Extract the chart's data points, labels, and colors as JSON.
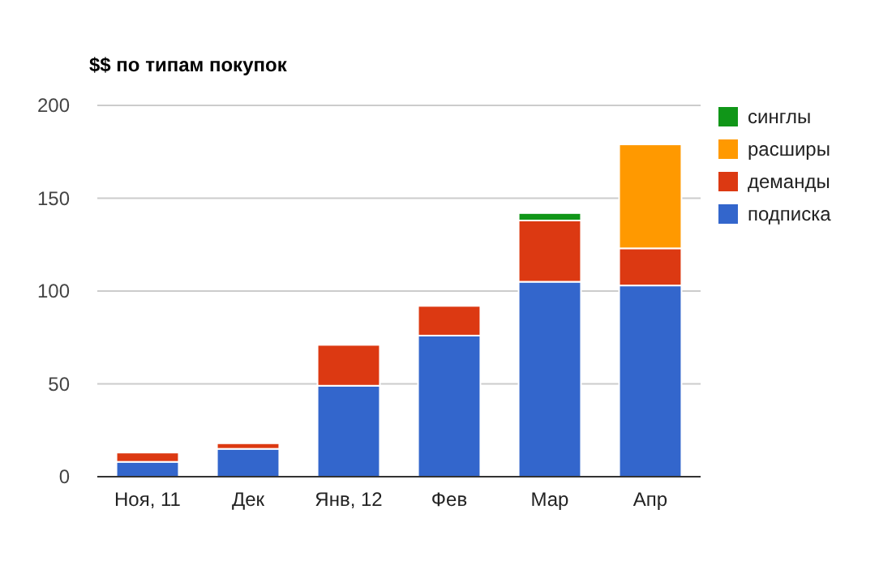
{
  "chart_data": {
    "type": "bar",
    "title": "$$ по типам покупок",
    "stacked": true,
    "categories": [
      "Ноя, 11",
      "Дек",
      "Янв, 12",
      "Фев",
      "Мар",
      "Апр"
    ],
    "series": [
      {
        "name": "подписка",
        "color": "#3366cc",
        "values": [
          8,
          15,
          49,
          76,
          105,
          103
        ]
      },
      {
        "name": "деманды",
        "color": "#dc3912",
        "values": [
          5,
          3,
          22,
          16,
          33,
          20
        ]
      },
      {
        "name": "расширы",
        "color": "#ff9900",
        "values": [
          0,
          0,
          0,
          0,
          0,
          56
        ]
      },
      {
        "name": "синглы",
        "color": "#109618",
        "values": [
          0,
          0,
          0,
          0,
          4,
          0
        ]
      }
    ],
    "ylim": [
      0,
      200
    ],
    "yticks": [
      0,
      50,
      100,
      150,
      200
    ],
    "grid": "y",
    "legend": "right"
  }
}
